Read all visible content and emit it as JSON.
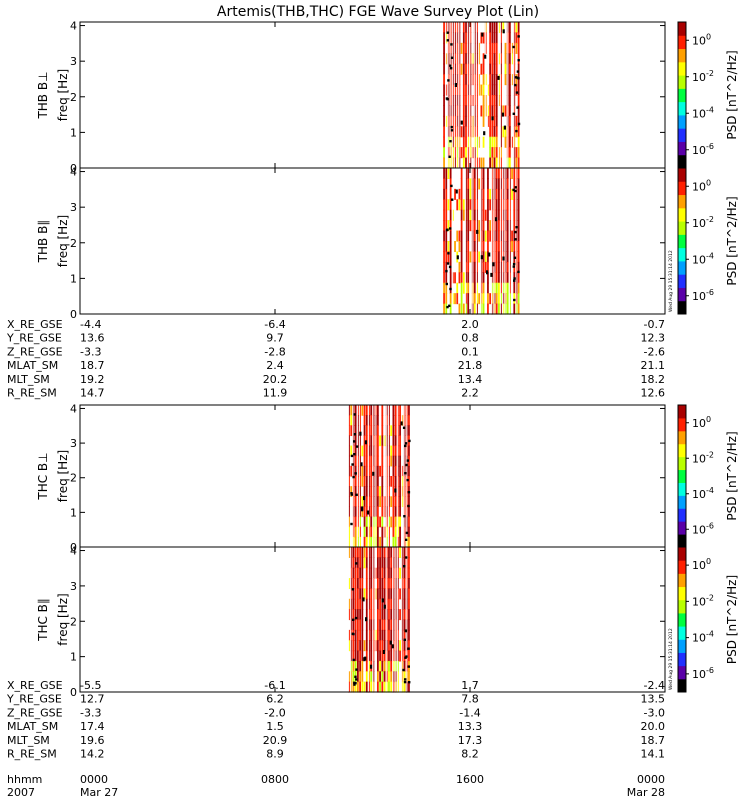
{
  "title": "Artemis(THB,THC) FGE Wave Survey Plot (Lin)",
  "chart_data": {
    "type": "heatmap",
    "title": "Artemis(THB,THC) FGE Wave Survey Plot (Lin)",
    "x_ticks": [
      "0000",
      "0800",
      "1600",
      "0000"
    ],
    "x_tick_hours": [
      0,
      8,
      16,
      24
    ],
    "freq_ticks": [
      0,
      1,
      2,
      3,
      4
    ],
    "ylim": [
      0,
      4.1
    ],
    "colorbar": {
      "label": "PSD [nT^2/Hz]",
      "tick_exponents": [
        -6,
        -4,
        -2,
        0
      ],
      "range_exponent": [
        -7,
        1
      ],
      "colors": [
        "#000000",
        "#5a00a8",
        "#2030ff",
        "#00a0ff",
        "#00ffe0",
        "#00ff40",
        "#b8ff00",
        "#ffff00",
        "#ffa000",
        "#ff2000",
        "#a80000"
      ]
    },
    "panels": [
      {
        "probe": "THB",
        "component": "B⊥",
        "label1": "THB B⊥",
        "label2": "freq [Hz]",
        "active_hours": [
          14.9,
          18.05
        ],
        "stamp": ""
      },
      {
        "probe": "THB",
        "component": "B∥",
        "label1": "THB B∥",
        "label2": "freq [Hz]",
        "active_hours": [
          14.9,
          18.05
        ],
        "stamp": "Wed Aug 29 15:31:14 2012"
      },
      {
        "probe": "THC",
        "component": "B⊥",
        "label1": "THC B⊥",
        "label2": "freq [Hz]",
        "active_hours": [
          11.0,
          13.55
        ],
        "stamp": ""
      },
      {
        "probe": "THC",
        "component": "B∥",
        "label1": "THC B∥",
        "label2": "freq [Hz]",
        "active_hours": [
          11.0,
          13.55
        ],
        "stamp": "Wed Aug 29 15:31:14 2012"
      }
    ],
    "ephemeris": [
      {
        "probe": "THB",
        "rows": [
          {
            "name": "X_RE_GSE",
            "values": [
              "-4.4",
              "-6.4",
              "2.0",
              "-0.7"
            ]
          },
          {
            "name": "Y_RE_GSE",
            "values": [
              "13.6",
              "9.7",
              "0.8",
              "12.3"
            ]
          },
          {
            "name": "Z_RE_GSE",
            "values": [
              "-3.3",
              "-2.8",
              "0.1",
              "-2.6"
            ]
          },
          {
            "name": "MLAT_SM",
            "values": [
              "18.7",
              "2.4",
              "21.8",
              "21.1"
            ]
          },
          {
            "name": "MLT_SM",
            "values": [
              "19.2",
              "20.2",
              "13.4",
              "18.2"
            ]
          },
          {
            "name": "R_RE_SM",
            "values": [
              "14.7",
              "11.9",
              "2.2",
              "12.6"
            ]
          }
        ]
      },
      {
        "probe": "THC",
        "rows": [
          {
            "name": "X_RE_GSE",
            "values": [
              "-5.5",
              "-6.1",
              "1.7",
              "-2.4"
            ]
          },
          {
            "name": "Y_RE_GSE",
            "values": [
              "12.7",
              "6.2",
              "7.8",
              "13.5"
            ]
          },
          {
            "name": "Z_RE_GSE",
            "values": [
              "-3.3",
              "-2.0",
              "-1.4",
              "-3.0"
            ]
          },
          {
            "name": "MLAT_SM",
            "values": [
              "17.4",
              "1.5",
              "13.3",
              "20.0"
            ]
          },
          {
            "name": "MLT_SM",
            "values": [
              "19.6",
              "20.9",
              "17.3",
              "18.7"
            ]
          },
          {
            "name": "R_RE_SM",
            "values": [
              "14.2",
              "8.9",
              "8.2",
              "14.1"
            ]
          }
        ]
      }
    ],
    "time_row": {
      "name": "hhmm",
      "values": [
        "0000",
        "0800",
        "1600",
        "0000"
      ]
    },
    "date_row": {
      "year": "2007",
      "start": "Mar 27",
      "end": "Mar 28"
    }
  }
}
